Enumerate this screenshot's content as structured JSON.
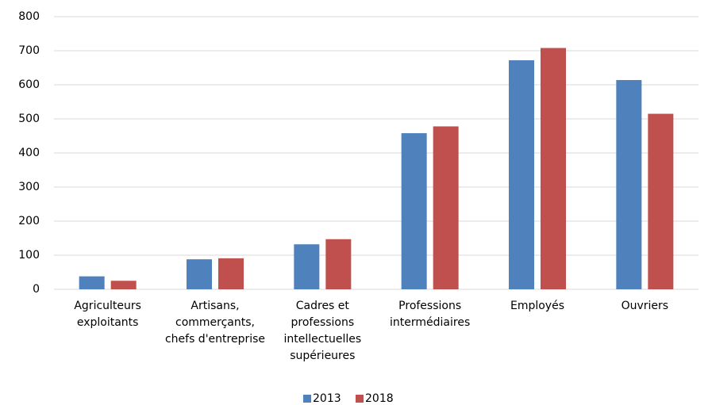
{
  "chart_data": {
    "type": "bar",
    "categories": [
      "Agriculteurs exploitants",
      "Artisans, commerçants, chefs d'entreprise",
      "Cadres et professions intellectuelles supérieures",
      "Professions intermédiaires",
      "Employés",
      "Ouvriers"
    ],
    "series": [
      {
        "name": "2013",
        "color": "#4f81bd",
        "values": [
          38,
          88,
          132,
          458,
          672,
          614
        ]
      },
      {
        "name": "2018",
        "color": "#c0504d",
        "values": [
          25,
          91,
          147,
          478,
          708,
          515
        ]
      }
    ],
    "ylim": [
      0,
      800
    ],
    "yticks": [
      0,
      100,
      200,
      300,
      400,
      500,
      600,
      700,
      800
    ],
    "grid": true,
    "legend": "bottom"
  }
}
